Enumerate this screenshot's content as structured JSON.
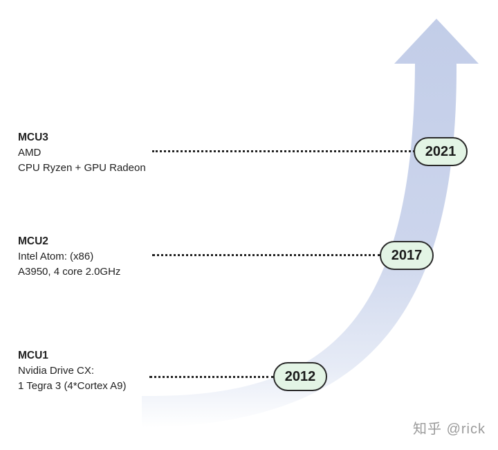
{
  "milestones": [
    {
      "name": "MCU3",
      "lines": [
        "AMD",
        "CPU Ryzen + GPU Radeon"
      ],
      "year": "2021"
    },
    {
      "name": "MCU2",
      "lines": [
        "Intel Atom: (x86)",
        "A3950, 4 core 2.0GHz"
      ],
      "year": "2017"
    },
    {
      "name": "MCU1",
      "lines": [
        "Nvidia Drive CX:",
        "1 Tegra 3 (4*Cortex A9)"
      ],
      "year": "2012"
    }
  ],
  "watermark": "知乎 @rick",
  "colors": {
    "arrow_top": "#c2cde8",
    "arrow_bottom": "#ffffff",
    "pill_fill": "#e3f4e5",
    "pill_border": "#2a2a2a"
  }
}
